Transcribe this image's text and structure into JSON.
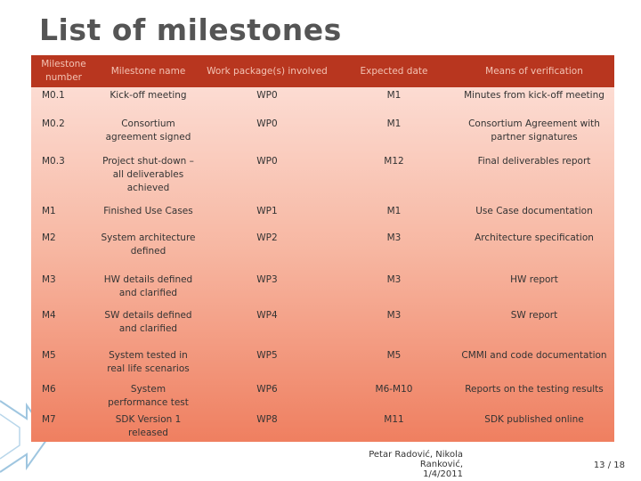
{
  "title": "List of milestones",
  "table": {
    "header": [
      "Milestone number",
      "Milestone name",
      "Work package(s) involved",
      "Expected date",
      "Means of verification"
    ],
    "rows": [
      [
        "M0.1",
        "Kick-off meeting",
        "WP0",
        "M1",
        "Minutes from kick-off meeting"
      ],
      [
        "M0.2",
        "Consortium agreement signed",
        "WP0",
        "M1",
        "Consortium Agreement with partner signatures"
      ],
      [
        "M0.3",
        "Project shut-down – all deliverables achieved",
        "WP0",
        "M12",
        "Final deliverables report"
      ],
      [
        "M1",
        "Finished Use Cases",
        "WP1",
        "M1",
        "Use Case documentation"
      ],
      [
        "M2",
        "System architecture defined",
        "WP2",
        "M3",
        "Architecture specification"
      ],
      [
        "M3",
        "HW details defined and clarified",
        "WP3",
        "M3",
        "HW report"
      ],
      [
        "M4",
        "SW details defined and clarified",
        "WP4",
        "M3",
        "SW report"
      ],
      [
        "M5",
        "System tested in real life scenarios",
        "WP5",
        "M5",
        "CMMI and code documentation"
      ],
      [
        "M6",
        "System performance test",
        "WP6",
        "M6-M10",
        "Reports on the testing results"
      ],
      [
        "M7",
        "SDK Version 1 released",
        "WP8",
        "M11",
        "SDK published online"
      ]
    ]
  },
  "footer": {
    "author": "Petar Radović, Nikola Ranković,",
    "date": "1/4/2011",
    "page": "13 / 18"
  }
}
